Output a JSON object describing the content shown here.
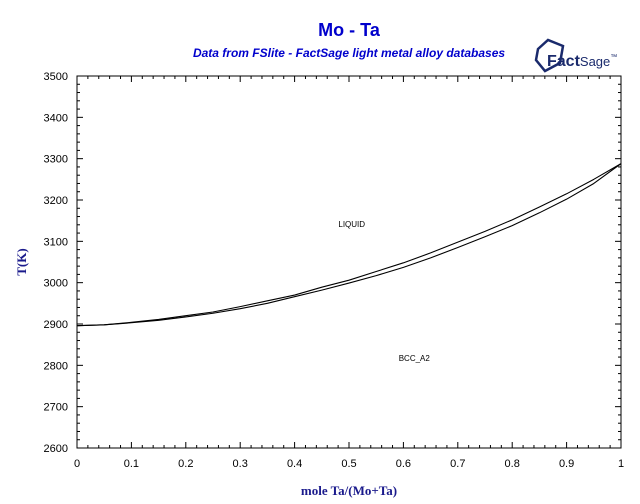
{
  "colors": {
    "title": "#0000cc",
    "axis_label": "#1a1a8c",
    "logo": "#1a2a6c",
    "curve": "#000000"
  },
  "logo": {
    "name": "FactSage",
    "part1": "Fact",
    "part2": "Sage",
    "mark": "™"
  },
  "chart_data": {
    "type": "line",
    "title": "Mo - Ta",
    "subtitle": "Data from FSlite - FactSage light metal alloy databases",
    "xlabel": "mole Ta/(Mo+Ta)",
    "ylabel": "T(K)",
    "xlim": [
      0,
      1
    ],
    "ylim": [
      2600,
      3500
    ],
    "xticks": [
      "0",
      "0.1",
      "0.2",
      "0.3",
      "0.4",
      "0.5",
      "0.6",
      "0.7",
      "0.8",
      "0.9",
      "1"
    ],
    "yticks": [
      "2600",
      "2700",
      "2800",
      "2900",
      "3000",
      "3100",
      "3200",
      "3300",
      "3400",
      "3500"
    ],
    "grid": false,
    "series": [
      {
        "x": [
          0,
          0.05,
          0.1,
          0.15,
          0.2,
          0.25,
          0.3,
          0.35,
          0.4,
          0.45,
          0.5,
          0.55,
          0.6,
          0.65,
          0.7,
          0.75,
          0.8,
          0.85,
          0.9,
          0.95,
          1
        ],
        "y": [
          2896,
          2898,
          2904,
          2911,
          2920,
          2929,
          2942,
          2956,
          2970,
          2989,
          3006,
          3027,
          3048,
          3072,
          3098,
          3124,
          3152,
          3183,
          3215,
          3250,
          3288
        ]
      },
      {
        "x": [
          0,
          0.05,
          0.1,
          0.15,
          0.2,
          0.25,
          0.3,
          0.35,
          0.4,
          0.45,
          0.5,
          0.55,
          0.6,
          0.65,
          0.7,
          0.75,
          0.8,
          0.85,
          0.9,
          0.95,
          1
        ],
        "y": [
          2896,
          2898,
          2903,
          2909,
          2917,
          2926,
          2937,
          2950,
          2966,
          2982,
          2999,
          3017,
          3037,
          3060,
          3085,
          3111,
          3138,
          3169,
          3202,
          3240,
          3288
        ]
      }
    ],
    "annotations": [
      {
        "text": "LIQUID",
        "x": 0.505,
        "y": 3135
      },
      {
        "text": "BCC_A2",
        "x": 0.62,
        "y": 2810
      }
    ]
  }
}
